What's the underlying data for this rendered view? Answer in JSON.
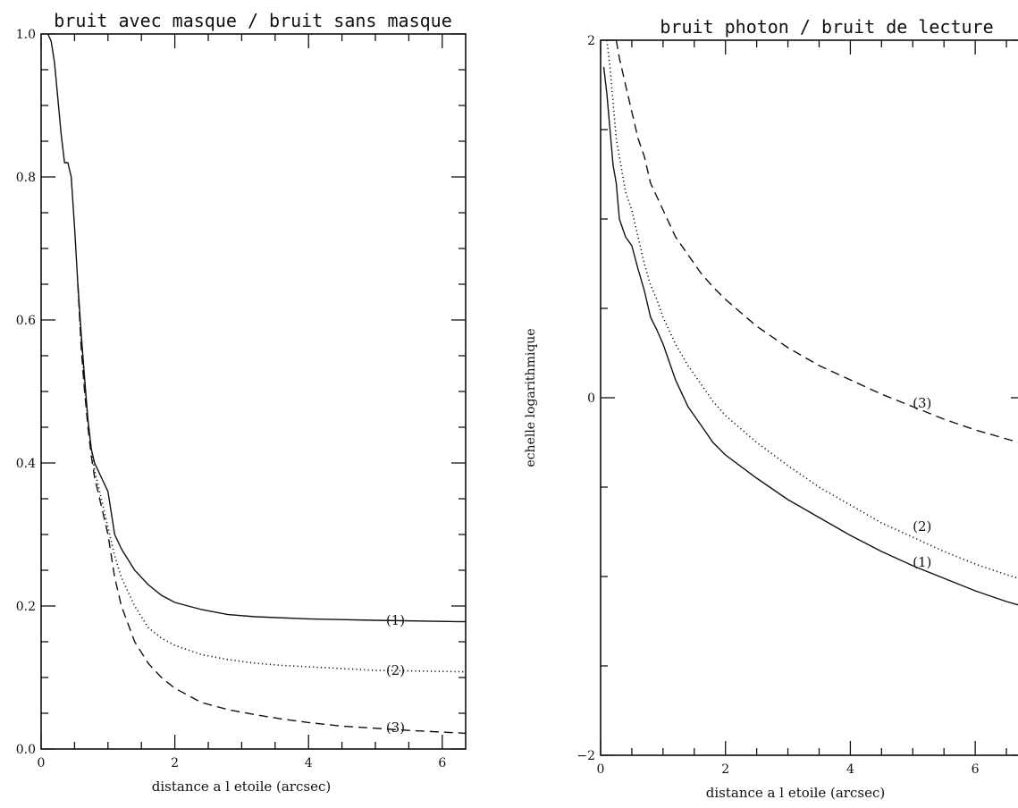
{
  "chart_data": [
    {
      "type": "line",
      "title": "bruit avec masque / bruit sans masque",
      "xlabel": "distance a l etoile (arcsec)",
      "ylabel": "",
      "xlim": [
        0,
        6.35
      ],
      "ylim": [
        0,
        1.0
      ],
      "x_ticks": [
        "0",
        "2",
        "4",
        "6"
      ],
      "y_ticks": [
        "0.0",
        "0.2",
        "0.4",
        "0.6",
        "0.8",
        "1.0"
      ],
      "series": [
        {
          "name": "(1)",
          "style": "solid",
          "x": [
            0.1,
            0.15,
            0.2,
            0.25,
            0.3,
            0.35,
            0.4,
            0.45,
            0.5,
            0.55,
            0.6,
            0.65,
            0.7,
            0.75,
            0.8,
            0.85,
            0.9,
            0.95,
            1.0,
            1.1,
            1.2,
            1.4,
            1.6,
            1.8,
            2.0,
            2.4,
            2.8,
            3.2,
            4.0,
            5.0,
            6.35
          ],
          "y": [
            1.0,
            0.99,
            0.96,
            0.91,
            0.86,
            0.82,
            0.82,
            0.8,
            0.73,
            0.65,
            0.58,
            0.52,
            0.46,
            0.42,
            0.4,
            0.39,
            0.38,
            0.37,
            0.36,
            0.3,
            0.28,
            0.25,
            0.23,
            0.215,
            0.205,
            0.195,
            0.188,
            0.185,
            0.182,
            0.18,
            0.178
          ]
        },
        {
          "name": "(2)",
          "style": "dotted",
          "x": [
            0.55,
            0.6,
            0.65,
            0.7,
            0.75,
            0.8,
            0.85,
            0.9,
            0.95,
            1.0,
            1.1,
            1.2,
            1.4,
            1.6,
            1.8,
            2.0,
            2.4,
            2.8,
            3.2,
            3.6,
            4.0,
            5.0,
            6.35
          ],
          "y": [
            0.65,
            0.57,
            0.51,
            0.46,
            0.42,
            0.39,
            0.37,
            0.35,
            0.33,
            0.31,
            0.27,
            0.24,
            0.2,
            0.17,
            0.155,
            0.145,
            0.132,
            0.125,
            0.12,
            0.117,
            0.115,
            0.11,
            0.108
          ]
        },
        {
          "name": "(3)",
          "style": "dashed",
          "x": [
            0.55,
            0.6,
            0.65,
            0.7,
            0.75,
            0.8,
            0.85,
            0.9,
            0.95,
            1.0,
            1.1,
            1.2,
            1.4,
            1.6,
            1.8,
            2.0,
            2.4,
            2.8,
            3.2,
            3.6,
            4.0,
            4.5,
            5.0,
            5.5,
            6.35
          ],
          "y": [
            0.65,
            0.56,
            0.5,
            0.45,
            0.41,
            0.38,
            0.36,
            0.34,
            0.32,
            0.3,
            0.24,
            0.2,
            0.15,
            0.12,
            0.1,
            0.085,
            0.065,
            0.055,
            0.048,
            0.042,
            0.037,
            0.032,
            0.029,
            0.026,
            0.022
          ]
        }
      ],
      "label_positions": [
        {
          "text": "(1)",
          "x": 5.3,
          "y": 0.18
        },
        {
          "text": "(2)",
          "x": 5.3,
          "y": 0.11
        },
        {
          "text": "(3)",
          "x": 5.3,
          "y": 0.03
        }
      ]
    },
    {
      "type": "line",
      "title": "bruit photon / bruit de lecture",
      "xlabel": "distance a l etoile (arcsec)",
      "ylabel": "echelle logarithmique",
      "xlim": [
        0,
        6.8
      ],
      "ylim": [
        -2,
        2
      ],
      "x_ticks": [
        "0",
        "2",
        "4",
        "6"
      ],
      "y_ticks": [
        "-2",
        "0",
        "2"
      ],
      "series": [
        {
          "name": "(1)",
          "style": "solid",
          "x": [
            0.05,
            0.1,
            0.15,
            0.2,
            0.25,
            0.3,
            0.35,
            0.4,
            0.5,
            0.6,
            0.7,
            0.8,
            0.9,
            1.0,
            1.2,
            1.4,
            1.6,
            1.8,
            2.0,
            2.5,
            3.0,
            3.5,
            4.0,
            4.5,
            5.0,
            5.5,
            6.0,
            6.5,
            6.8
          ],
          "y": [
            1.85,
            1.7,
            1.5,
            1.3,
            1.2,
            1.0,
            0.95,
            0.9,
            0.85,
            0.72,
            0.6,
            0.45,
            0.38,
            0.3,
            0.1,
            -0.05,
            -0.15,
            -0.25,
            -0.32,
            -0.45,
            -0.57,
            -0.67,
            -0.77,
            -0.86,
            -0.94,
            -1.01,
            -1.08,
            -1.14,
            -1.17
          ]
        },
        {
          "name": "(2)",
          "style": "dotted",
          "x": [
            0.1,
            0.15,
            0.2,
            0.25,
            0.3,
            0.4,
            0.5,
            0.6,
            0.7,
            0.8,
            0.9,
            1.0,
            1.2,
            1.4,
            1.6,
            1.8,
            2.0,
            2.5,
            3.0,
            3.5,
            4.0,
            4.5,
            5.0,
            5.5,
            6.0,
            6.5,
            6.8
          ],
          "y": [
            2.0,
            1.85,
            1.65,
            1.45,
            1.35,
            1.15,
            1.05,
            0.9,
            0.75,
            0.63,
            0.55,
            0.45,
            0.3,
            0.18,
            0.08,
            -0.02,
            -0.1,
            -0.25,
            -0.38,
            -0.5,
            -0.6,
            -0.7,
            -0.78,
            -0.86,
            -0.93,
            -0.99,
            -1.02
          ]
        },
        {
          "name": "(3)",
          "style": "dashed",
          "x": [
            0.25,
            0.3,
            0.4,
            0.5,
            0.6,
            0.7,
            0.8,
            1.0,
            1.2,
            1.4,
            1.6,
            1.8,
            2.0,
            2.5,
            3.0,
            3.5,
            4.0,
            4.5,
            5.0,
            5.5,
            6.0,
            6.5,
            6.8
          ],
          "y": [
            2.0,
            1.9,
            1.75,
            1.6,
            1.45,
            1.35,
            1.2,
            1.05,
            0.9,
            0.8,
            0.7,
            0.62,
            0.55,
            0.4,
            0.28,
            0.18,
            0.1,
            0.02,
            -0.05,
            -0.12,
            -0.18,
            -0.23,
            -0.26
          ]
        }
      ],
      "label_positions": [
        {
          "text": "(3)",
          "x": 5.15,
          "y": -0.03
        },
        {
          "text": "(2)",
          "x": 5.15,
          "y": -0.72
        },
        {
          "text": "(1)",
          "x": 5.15,
          "y": -0.92
        }
      ]
    }
  ]
}
